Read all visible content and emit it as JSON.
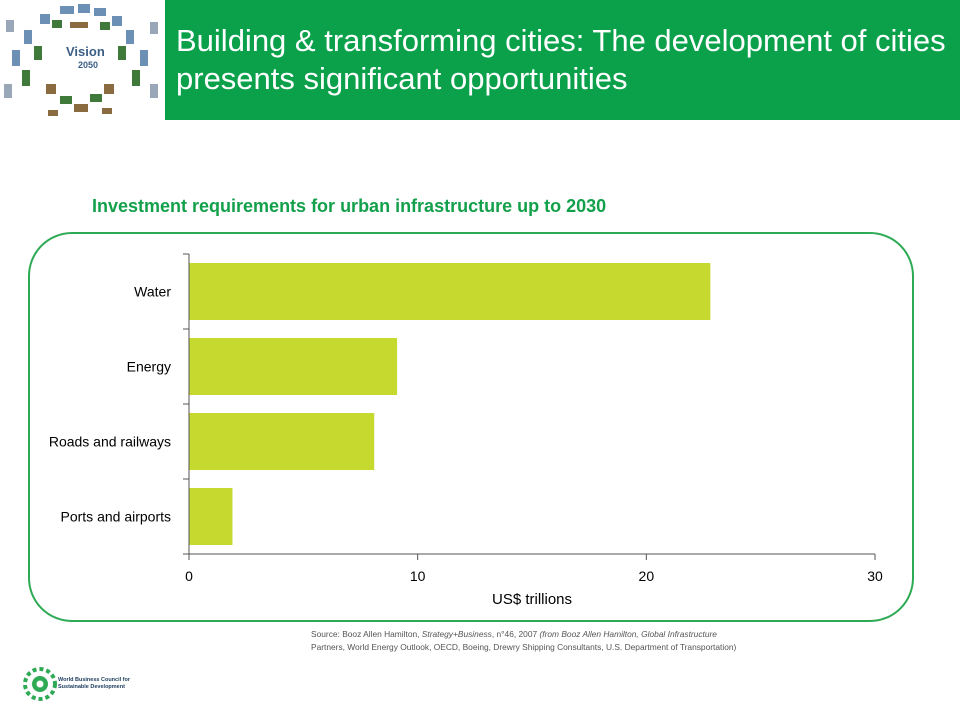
{
  "header": {
    "title": "Building & transforming cities: The development of cities presents significant opportunities",
    "logo_text": "Vision 2050"
  },
  "colors": {
    "header_green": "#0ba14b",
    "title_green": "#13a04b",
    "bar_green": "#c5d92e",
    "frame_green": "#2eaa55"
  },
  "chart_data": {
    "type": "bar",
    "orientation": "horizontal",
    "title": "Investment requirements for urban infrastructure up to 2030",
    "categories": [
      "Water",
      "Energy",
      "Roads and railways",
      "Ports and airports"
    ],
    "values": [
      22.8,
      9.1,
      8.1,
      1.9
    ],
    "xlabel": "US$ trillions",
    "ylabel": "",
    "xlim": [
      0,
      30
    ],
    "xticks": [
      0,
      10,
      20,
      30
    ],
    "grid": false
  },
  "source": {
    "prefix": "Source: Booz Allen Hamilton, ",
    "italic1": "Strategy+Business",
    "mid": ", n°46, 2007 ",
    "italic2": "(from Booz Allen Hamilton, Global Infrastructure",
    "line2": "Partners, World Energy Outlook, OECD, Boeing, Drewry Shipping Consultants, U.S. Department of Transportation)"
  },
  "footer": {
    "org_line1": "World Business Council for",
    "org_line2": "Sustainable Development"
  }
}
